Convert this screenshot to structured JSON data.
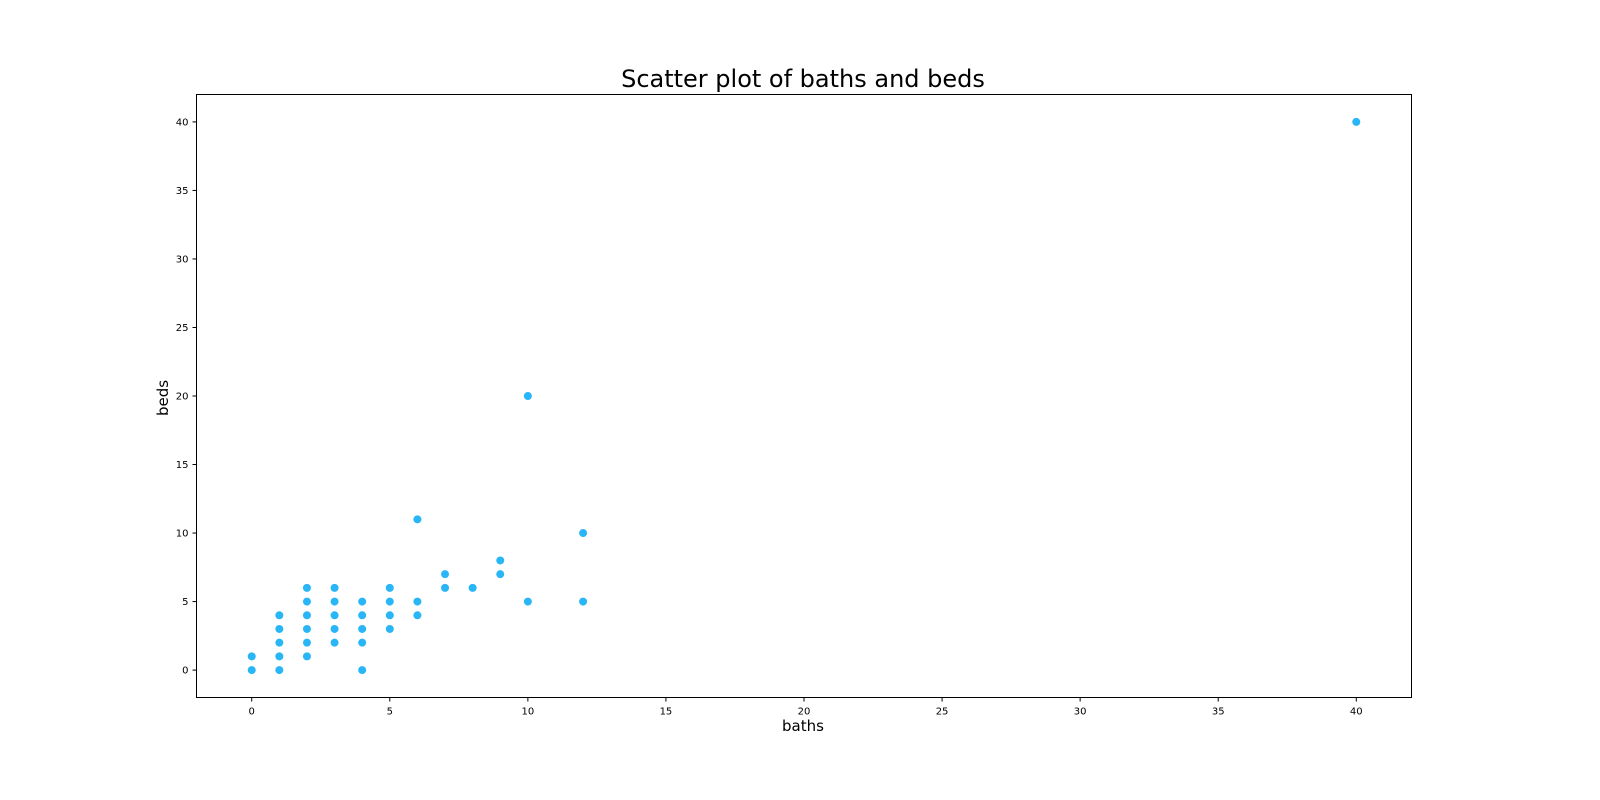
{
  "chart_data": {
    "type": "scatter",
    "title": "Scatter plot of baths and beds",
    "xlabel": "baths",
    "ylabel": "beds",
    "xlim": [
      -2,
      42
    ],
    "ylim": [
      -2,
      42
    ],
    "xticks": [
      0,
      5,
      10,
      15,
      20,
      25,
      30,
      35,
      40
    ],
    "yticks": [
      0,
      5,
      10,
      15,
      20,
      25,
      30,
      35,
      40
    ],
    "grid": false,
    "color": "#29b6f6",
    "points": [
      {
        "x": 0,
        "y": 0
      },
      {
        "x": 0,
        "y": 1
      },
      {
        "x": 1,
        "y": 0
      },
      {
        "x": 1,
        "y": 1
      },
      {
        "x": 1,
        "y": 2
      },
      {
        "x": 1,
        "y": 3
      },
      {
        "x": 1,
        "y": 4
      },
      {
        "x": 2,
        "y": 1
      },
      {
        "x": 2,
        "y": 2
      },
      {
        "x": 2,
        "y": 3
      },
      {
        "x": 2,
        "y": 4
      },
      {
        "x": 2,
        "y": 5
      },
      {
        "x": 2,
        "y": 6
      },
      {
        "x": 3,
        "y": 2
      },
      {
        "x": 3,
        "y": 3
      },
      {
        "x": 3,
        "y": 4
      },
      {
        "x": 3,
        "y": 5
      },
      {
        "x": 3,
        "y": 6
      },
      {
        "x": 4,
        "y": 0
      },
      {
        "x": 4,
        "y": 2
      },
      {
        "x": 4,
        "y": 3
      },
      {
        "x": 4,
        "y": 4
      },
      {
        "x": 4,
        "y": 5
      },
      {
        "x": 5,
        "y": 3
      },
      {
        "x": 5,
        "y": 4
      },
      {
        "x": 5,
        "y": 5
      },
      {
        "x": 5,
        "y": 6
      },
      {
        "x": 6,
        "y": 4
      },
      {
        "x": 6,
        "y": 5
      },
      {
        "x": 6,
        "y": 11
      },
      {
        "x": 7,
        "y": 6
      },
      {
        "x": 7,
        "y": 7
      },
      {
        "x": 8,
        "y": 6
      },
      {
        "x": 9,
        "y": 7
      },
      {
        "x": 9,
        "y": 8
      },
      {
        "x": 10,
        "y": 5
      },
      {
        "x": 10,
        "y": 20
      },
      {
        "x": 12,
        "y": 5
      },
      {
        "x": 12,
        "y": 10
      },
      {
        "x": 40,
        "y": 40
      }
    ]
  }
}
